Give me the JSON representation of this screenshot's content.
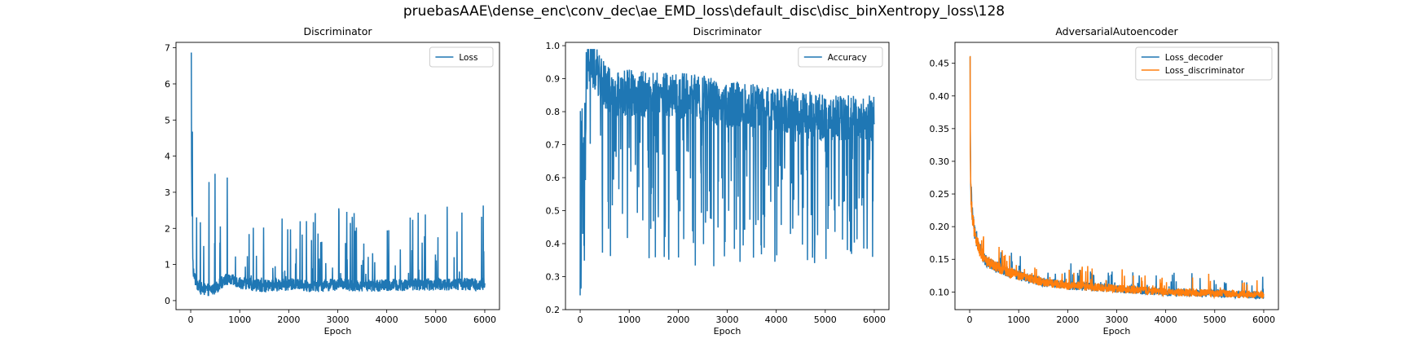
{
  "figure": {
    "suptitle": "pruebasAAE\\dense_enc\\conv_dec\\ae_EMD_loss\\default_disc\\disc_binXentropy_loss\\128"
  },
  "colors": {
    "blue": "#1f77b4",
    "orange": "#ff7f0e"
  },
  "chart_data": [
    {
      "type": "line",
      "title": "Discriminator",
      "xlabel": "Epoch",
      "ylabel": "",
      "xlim": [
        -300,
        6300
      ],
      "ylim": [
        -0.25,
        7.15
      ],
      "xticks": [
        0,
        1000,
        2000,
        3000,
        4000,
        5000,
        6000
      ],
      "yticks": [
        0,
        1,
        2,
        3,
        4,
        5,
        6,
        7
      ],
      "legend": "top-right",
      "series": [
        {
          "name": "Loss",
          "color": "#1f77b4",
          "gen": "loss",
          "x": [
            0,
            25,
            50,
            100,
            200,
            300,
            400,
            500,
            600,
            700,
            800,
            900,
            1000,
            1200,
            1500,
            2000,
            2500,
            3000,
            3500,
            4000,
            4500,
            5000,
            5500,
            6000
          ],
          "values": [
            6.85,
            2.6,
            0.8,
            0.55,
            0.35,
            0.3,
            0.3,
            0.35,
            0.45,
            0.6,
            0.55,
            0.55,
            0.5,
            0.45,
            0.4,
            0.45,
            0.4,
            0.45,
            0.42,
            0.42,
            0.45,
            0.45,
            0.45,
            0.45
          ]
        }
      ]
    },
    {
      "type": "line",
      "title": "Discriminator",
      "xlabel": "Epoch",
      "ylabel": "",
      "xlim": [
        -300,
        6300
      ],
      "ylim": [
        0.2,
        1.01
      ],
      "xticks": [
        0,
        1000,
        2000,
        3000,
        4000,
        5000,
        6000
      ],
      "yticks": [
        0.2,
        0.3,
        0.4,
        0.5,
        0.6,
        0.7,
        0.8,
        0.9,
        1.0
      ],
      "legend": "top-right",
      "series": [
        {
          "name": "Accuracy",
          "color": "#1f77b4",
          "gen": "acc",
          "x": [
            0,
            50,
            100,
            200,
            300,
            500,
            700,
            1000,
            1500,
            2000,
            2500,
            3000,
            3500,
            4000,
            4500,
            5000,
            5500,
            6000
          ],
          "values": [
            0.3,
            0.6,
            0.92,
            0.95,
            0.93,
            0.88,
            0.85,
            0.86,
            0.85,
            0.85,
            0.84,
            0.82,
            0.82,
            0.8,
            0.8,
            0.78,
            0.78,
            0.78
          ]
        }
      ]
    },
    {
      "type": "line",
      "title": "AdversarialAutoencoder",
      "xlabel": "Epoch",
      "ylabel": "",
      "xlim": [
        -300,
        6300
      ],
      "ylim": [
        0.073,
        0.482
      ],
      "xticks": [
        0,
        1000,
        2000,
        3000,
        4000,
        5000,
        6000
      ],
      "yticks": [
        0.1,
        0.15,
        0.2,
        0.25,
        0.3,
        0.35,
        0.4,
        0.45
      ],
      "legend": "top-right",
      "series": [
        {
          "name": "Loss_decoder",
          "color": "#1f77b4",
          "gen": "ae",
          "x": [
            0,
            20,
            50,
            100,
            200,
            300,
            500,
            800,
            1000,
            1500,
            2000,
            3000,
            4000,
            5000,
            6000
          ],
          "values": [
            0.46,
            0.26,
            0.22,
            0.19,
            0.165,
            0.15,
            0.14,
            0.13,
            0.125,
            0.115,
            0.11,
            0.105,
            0.1,
            0.098,
            0.095
          ]
        },
        {
          "name": "Loss_discriminator",
          "color": "#ff7f0e",
          "gen": "ae",
          "x": [
            0,
            20,
            50,
            100,
            200,
            300,
            500,
            800,
            1000,
            1500,
            2000,
            3000,
            4000,
            5000,
            6000
          ],
          "values": [
            0.46,
            0.26,
            0.22,
            0.19,
            0.165,
            0.15,
            0.14,
            0.13,
            0.125,
            0.115,
            0.11,
            0.105,
            0.1,
            0.098,
            0.095
          ]
        }
      ]
    }
  ]
}
